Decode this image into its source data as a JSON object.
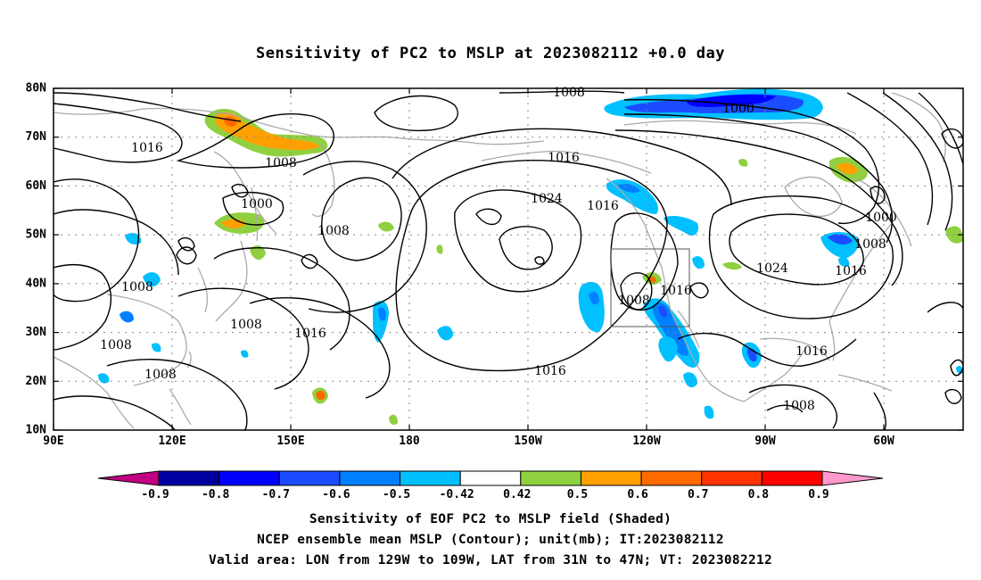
{
  "title": "Sensitivity of PC2 to MSLP at 2023082112 +0.0 day",
  "lat_labels": [
    "80N",
    "70N",
    "60N",
    "50N",
    "40N",
    "30N",
    "20N",
    "10N"
  ],
  "lon_labels": [
    "90E",
    "120E",
    "150E",
    "180",
    "150W",
    "120W",
    "90W",
    "60W"
  ],
  "contour_labels": [
    "1008",
    "1000",
    "1016",
    "1008",
    "1000",
    "1008",
    "1016",
    "1024",
    "1016",
    "1008",
    "1016",
    "1008",
    "1016",
    "1024",
    "1000",
    "1008",
    "1016",
    "1008",
    "1008",
    "1008",
    "1016",
    "1016",
    "1008",
    "1016",
    "1008"
  ],
  "colorbar": {
    "labels": [
      "-0.9",
      "-0.8",
      "-0.7",
      "-0.6",
      "-0.5",
      "-0.42",
      "0.42",
      "0.5",
      "0.6",
      "0.7",
      "0.8",
      "0.9"
    ],
    "colors": [
      "#c00080",
      "#0000a0",
      "#0000ff",
      "#1b4cff",
      "#0080ff",
      "#00c0ff",
      "#ffffff",
      "#90d040",
      "#ffa000",
      "#ff6a00",
      "#ff3300",
      "#ff0000",
      "#ff99cc"
    ]
  },
  "captions": {
    "line1": "Sensitivity of EOF PC2 to MSLP field (Shaded)",
    "line2": "NCEP ensemble mean MSLP (Contour); unit(mb); IT:2023082112",
    "line3": "Valid area: LON from 129W to 109W, LAT from 31N to 47N; VT: 2023082212"
  }
}
